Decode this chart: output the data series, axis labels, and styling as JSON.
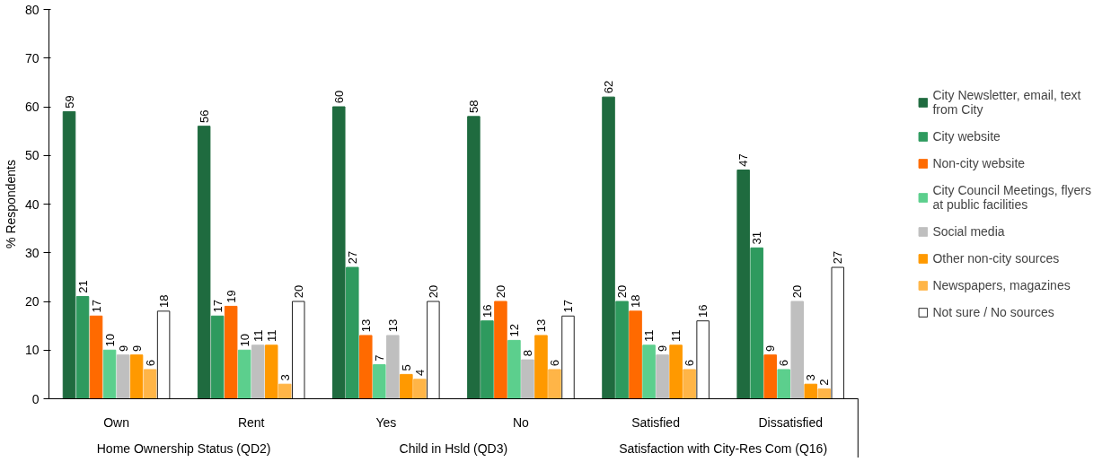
{
  "chart_data": {
    "type": "bar",
    "ylabel": "% Respondents",
    "categories": [
      "Own",
      "Rent",
      "Yes",
      "No",
      "Satisfied",
      "Dissatisfied"
    ],
    "annotations": [
      "Home Ownership Status (QD2)",
      "Child in Hsld (QD3)",
      "Satisfaction with City-Res Com (Q16)"
    ],
    "series": [
      {
        "name": "City Newsletter, email, text from City",
        "color": "#1f6b3f",
        "values": [
          59,
          56,
          60,
          58,
          62,
          47
        ]
      },
      {
        "name": "City website",
        "color": "#2e9a5e",
        "values": [
          21,
          17,
          27,
          16,
          20,
          31
        ]
      },
      {
        "name": "Non-city website",
        "color": "#ff6a00",
        "values": [
          17,
          19,
          13,
          20,
          18,
          9
        ]
      },
      {
        "name": "City Council Meetings, flyers at public facilities",
        "color": "#5ccf8d",
        "values": [
          10,
          10,
          7,
          12,
          11,
          6
        ]
      },
      {
        "name": "Social media",
        "color": "#bfbfbf",
        "values": [
          9,
          11,
          13,
          8,
          9,
          20
        ]
      },
      {
        "name": "Other non-city sources",
        "color": "#ff9900",
        "values": [
          9,
          11,
          5,
          13,
          11,
          3
        ]
      },
      {
        "name": "Newspapers, magazines",
        "color": "#ffb547",
        "values": [
          6,
          3,
          4,
          6,
          6,
          2
        ]
      },
      {
        "name": "Not sure / No sources",
        "color": "#ffffff",
        "values": [
          18,
          20,
          20,
          17,
          16,
          27
        ]
      }
    ],
    "ylim": [
      0,
      80
    ],
    "yticks": [
      0,
      10,
      20,
      30,
      40,
      50,
      60,
      70,
      80
    ],
    "data_labels": true,
    "grid": false,
    "legend": "right"
  }
}
